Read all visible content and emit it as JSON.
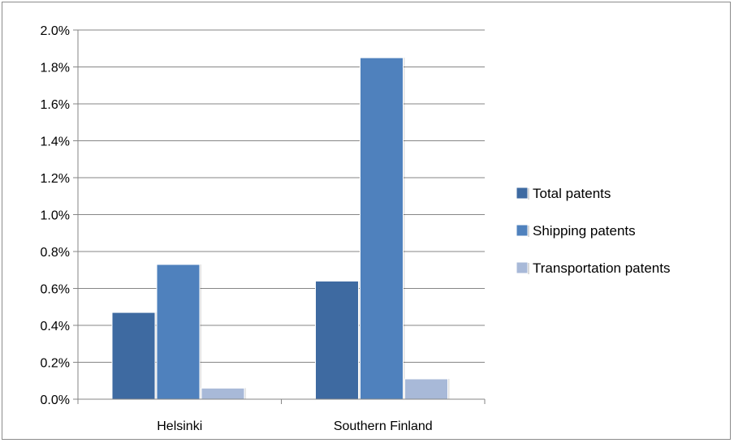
{
  "chart_data": {
    "type": "bar",
    "categories": [
      "Helsinki",
      "Southern Finland"
    ],
    "series": [
      {
        "name": "Total patents",
        "color": "#3e6aa1",
        "values": [
          0.47,
          0.64
        ]
      },
      {
        "name": "Shipping patents",
        "color": "#4f81bd",
        "values": [
          0.73,
          1.85
        ]
      },
      {
        "name": "Transportation patents",
        "color": "#a8b9d8",
        "values": [
          0.06,
          0.11
        ]
      }
    ],
    "yticks": [
      "0.0%",
      "0.2%",
      "0.4%",
      "0.6%",
      "0.8%",
      "1.0%",
      "1.2%",
      "1.4%",
      "1.6%",
      "1.8%",
      "2.0%"
    ],
    "ylim": [
      0,
      2.0
    ],
    "grid": true,
    "legend": "right"
  }
}
